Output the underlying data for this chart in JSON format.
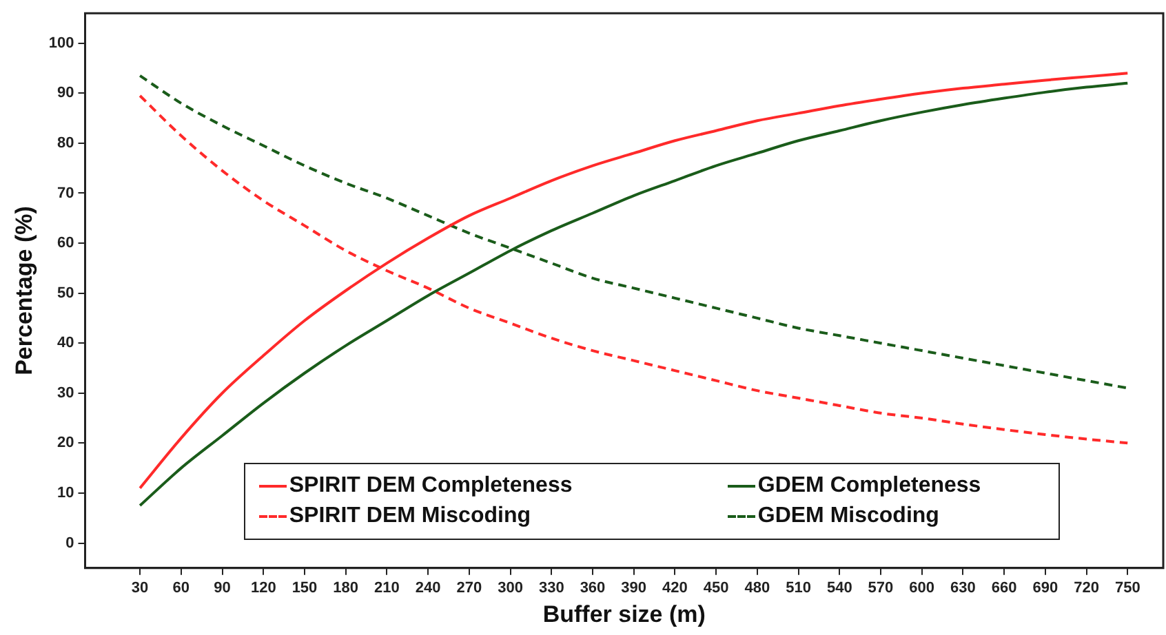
{
  "chart_data": {
    "type": "line",
    "xlabel": "Buffer size (m)",
    "ylabel": "Percentage (%)",
    "x": [
      30,
      60,
      90,
      120,
      150,
      180,
      210,
      240,
      270,
      300,
      330,
      360,
      390,
      420,
      450,
      480,
      510,
      540,
      570,
      600,
      630,
      660,
      690,
      720,
      750
    ],
    "xlim": [
      -10,
      776
    ],
    "xticks": [
      30,
      60,
      90,
      120,
      150,
      180,
      210,
      240,
      270,
      300,
      330,
      360,
      390,
      420,
      450,
      480,
      510,
      540,
      570,
      600,
      630,
      660,
      690,
      720,
      750
    ],
    "ylim": [
      -5,
      106
    ],
    "yticks": [
      0,
      10,
      20,
      30,
      40,
      50,
      60,
      70,
      80,
      90,
      100
    ],
    "grid": false,
    "legend": "bottom",
    "marker": "none",
    "series": [
      {
        "name": "SPIRIT DEM Completeness",
        "color": "#ff2a2a",
        "line_style": "solid",
        "values": [
          11,
          21,
          30,
          37.5,
          44.5,
          50.5,
          56,
          61,
          65.5,
          69,
          72.5,
          75.5,
          78,
          80.5,
          82.5,
          84.5,
          86,
          87.5,
          88.8,
          90,
          91,
          91.8,
          92.6,
          93.3,
          94
        ]
      },
      {
        "name": "GDEM Completeness",
        "color": "#1a5c1a",
        "line_style": "solid",
        "values": [
          7.5,
          15,
          21.5,
          28,
          34,
          39.5,
          44.5,
          49.5,
          54,
          58.5,
          62.5,
          66,
          69.5,
          72.5,
          75.5,
          78,
          80.5,
          82.5,
          84.5,
          86.2,
          87.7,
          89,
          90.2,
          91.2,
          92
        ]
      },
      {
        "name": "SPIRIT DEM Miscoding",
        "color": "#ff2a2a",
        "line_style": "dashed",
        "values": [
          89.5,
          81.5,
          74.5,
          68.5,
          63.5,
          58.5,
          54.5,
          51,
          47,
          44,
          41,
          38.5,
          36.5,
          34.5,
          32.5,
          30.5,
          29,
          27.5,
          26,
          25,
          23.8,
          22.7,
          21.7,
          20.8,
          20
        ]
      },
      {
        "name": "GDEM Miscoding",
        "color": "#1a5c1a",
        "line_style": "dashed",
        "values": [
          93.5,
          88,
          83.5,
          79.5,
          75.5,
          72,
          69,
          65.5,
          62,
          59,
          56,
          53,
          51,
          49,
          47,
          45,
          43,
          41.5,
          40,
          38.5,
          37,
          35.5,
          34,
          32.5,
          31
        ]
      }
    ]
  }
}
